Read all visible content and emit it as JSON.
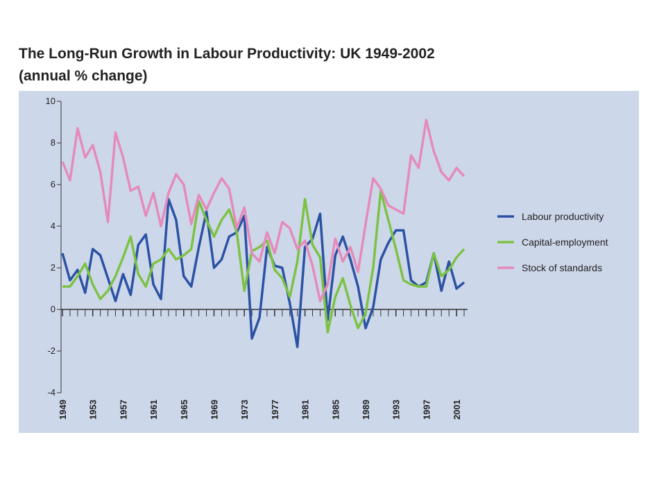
{
  "chart_data": {
    "type": "line",
    "title": "The Long-Run Growth in Labour Productivity: UK 1949-2002",
    "subtitle": "(annual % change)",
    "x": [
      1949,
      1950,
      1951,
      1952,
      1953,
      1954,
      1955,
      1956,
      1957,
      1958,
      1959,
      1960,
      1961,
      1962,
      1963,
      1964,
      1965,
      1966,
      1967,
      1968,
      1969,
      1970,
      1971,
      1972,
      1973,
      1974,
      1975,
      1976,
      1977,
      1978,
      1979,
      1980,
      1981,
      1982,
      1983,
      1984,
      1985,
      1986,
      1987,
      1988,
      1989,
      1990,
      1991,
      1992,
      1993,
      1994,
      1995,
      1996,
      1997,
      1998,
      1999,
      2000,
      2001,
      2002
    ],
    "xlim": [
      1949,
      2002
    ],
    "xticks": [
      1949,
      1953,
      1957,
      1961,
      1965,
      1969,
      1973,
      1977,
      1981,
      1985,
      1989,
      1993,
      1997,
      2001
    ],
    "ylim": [
      -4,
      10
    ],
    "yticks": [
      10,
      8,
      6,
      4,
      2,
      0,
      -2,
      -4
    ],
    "legend": "right",
    "series": [
      {
        "name": "Labour productivity",
        "color": "#2b52a3",
        "values": [
          2.7,
          1.4,
          1.9,
          0.8,
          2.9,
          2.6,
          1.5,
          0.4,
          1.7,
          0.7,
          3.1,
          3.6,
          1.2,
          0.5,
          5.3,
          4.3,
          1.6,
          1.1,
          3.0,
          4.7,
          2.0,
          2.4,
          3.5,
          3.7,
          4.5,
          -1.4,
          -0.4,
          3.0,
          2.1,
          2.0,
          0.3,
          -1.8,
          3.0,
          3.4,
          4.6,
          -0.5,
          2.6,
          3.5,
          2.4,
          1.1,
          -0.9,
          0.1,
          2.4,
          3.2,
          3.8,
          3.8,
          1.4,
          1.1,
          1.3,
          2.7,
          0.9,
          2.3,
          1.0,
          1.3
        ]
      },
      {
        "name": "Capital-employment",
        "color": "#7cc243",
        "values": [
          1.1,
          1.1,
          1.6,
          2.2,
          1.2,
          0.5,
          0.9,
          1.6,
          2.5,
          3.5,
          1.7,
          1.1,
          2.2,
          2.4,
          2.9,
          2.4,
          2.6,
          2.9,
          5.2,
          4.3,
          3.5,
          4.3,
          4.8,
          3.7,
          0.9,
          2.8,
          3.0,
          3.3,
          1.9,
          1.5,
          0.6,
          2.3,
          5.3,
          3.1,
          2.5,
          -1.1,
          0.6,
          1.5,
          0.2,
          -0.9,
          -0.2,
          2.0,
          5.7,
          4.3,
          2.9,
          1.4,
          1.2,
          1.1,
          1.1,
          2.7,
          1.6,
          1.9,
          2.5,
          2.9
        ]
      },
      {
        "name": "Stock of standards",
        "color": "#e48bbb",
        "values": [
          7.1,
          6.2,
          8.7,
          7.3,
          7.9,
          6.6,
          4.2,
          8.5,
          7.3,
          5.7,
          5.9,
          4.5,
          5.6,
          4.0,
          5.6,
          6.5,
          6.0,
          4.1,
          5.5,
          4.8,
          5.6,
          6.3,
          5.8,
          3.9,
          4.9,
          2.7,
          2.3,
          3.7,
          2.7,
          4.2,
          3.9,
          2.9,
          3.3,
          2.1,
          0.4,
          1.2,
          3.4,
          2.3,
          3.0,
          1.8,
          4.1,
          6.3,
          5.8,
          5.0,
          4.8,
          4.6,
          7.4,
          6.8,
          9.1,
          7.6,
          6.6,
          6.2,
          6.8,
          6.4
        ]
      }
    ]
  }
}
